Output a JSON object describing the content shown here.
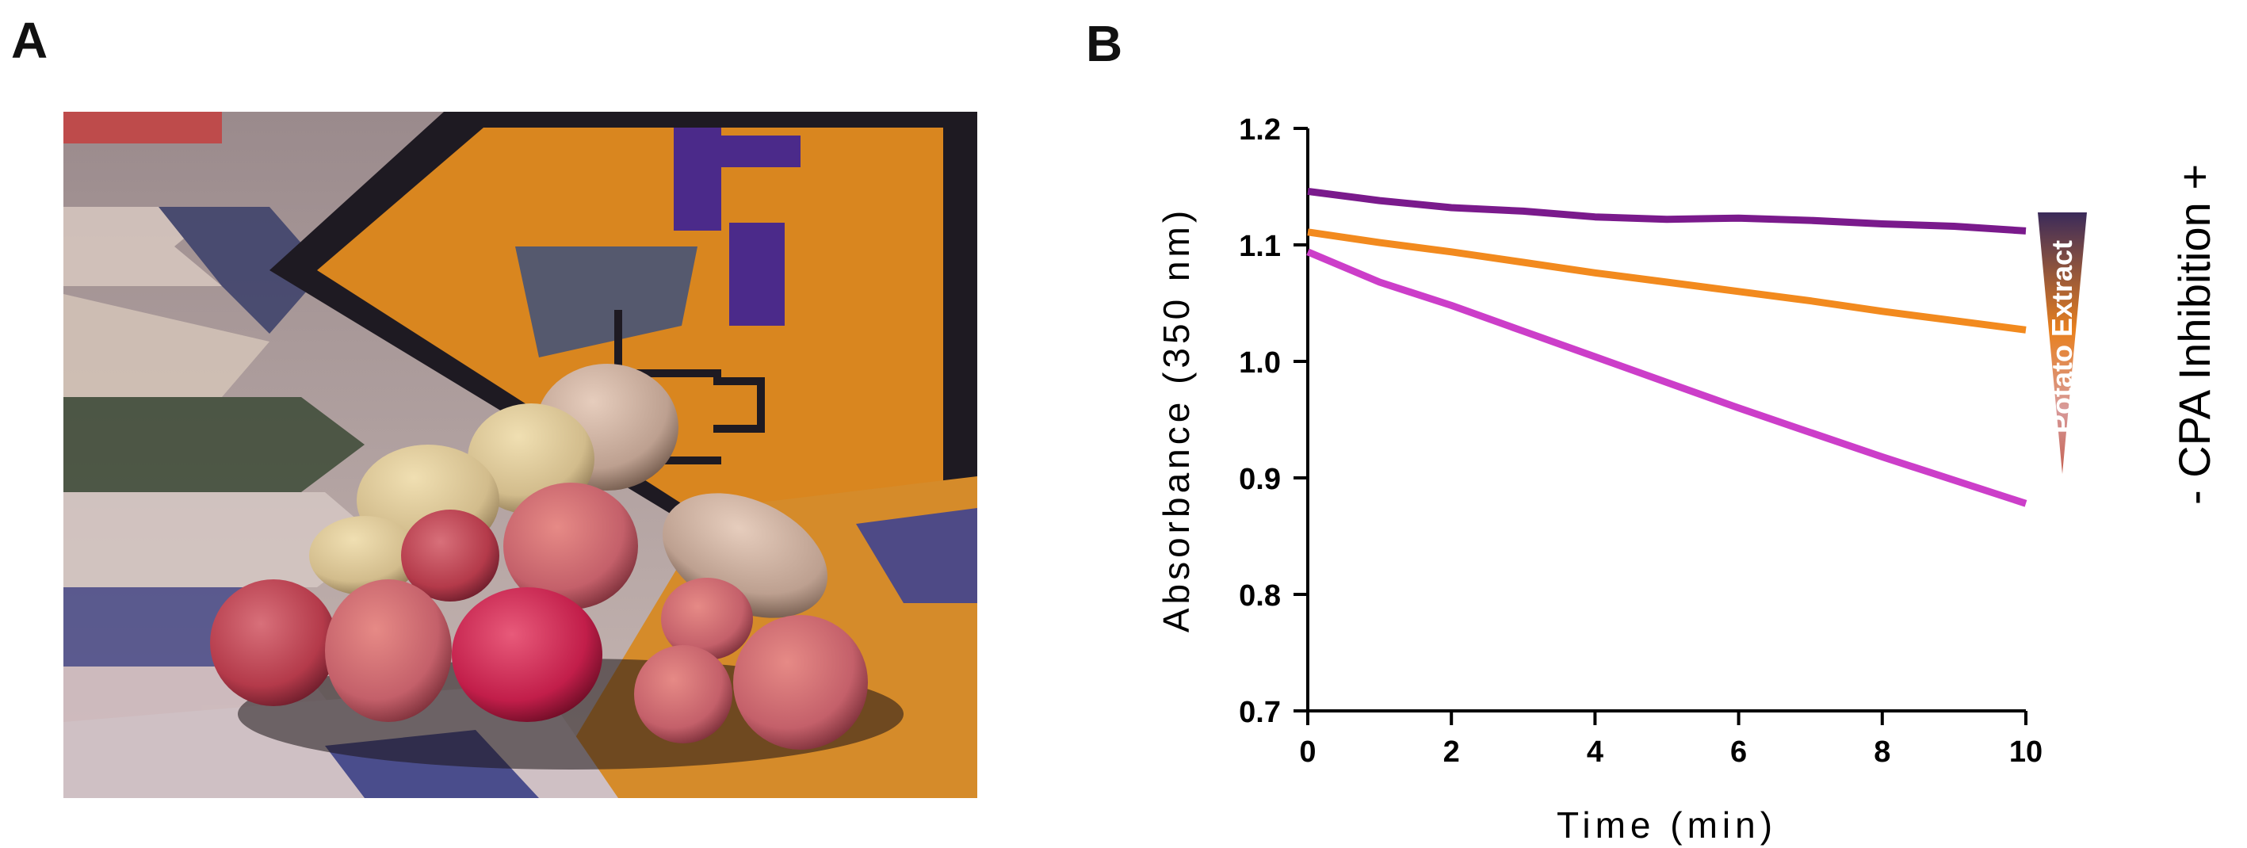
{
  "panels": {
    "a": "A",
    "b": "B"
  },
  "photo": {
    "subject": "potatoes-on-woven-textile",
    "colors": {
      "textile_orange": "#d9861f",
      "textile_dark": "#2a1d2e",
      "bird_purple": "#4b2a8a",
      "potato_red": "#b8394a",
      "potato_cream": "#d8c49a"
    }
  },
  "chart_data": {
    "type": "line",
    "xlabel": "Time (min)",
    "ylabel": "Absorbance (350 nm)",
    "xlim": [
      0,
      10
    ],
    "ylim": [
      0.7,
      1.2
    ],
    "xticks": [
      0,
      2,
      4,
      6,
      8,
      10
    ],
    "yticks": [
      0.7,
      0.8,
      0.9,
      1.0,
      1.1,
      1.2
    ],
    "xtick_labels": [
      "0",
      "2",
      "4",
      "6",
      "8",
      "10"
    ],
    "ytick_labels": [
      "0.7",
      "0.8",
      "0.9",
      "1.0",
      "1.1",
      "1.2"
    ],
    "grid": false,
    "series": [
      {
        "color": "#7a1a8c",
        "x": [
          0,
          1,
          2,
          3,
          4,
          5,
          6,
          7,
          8,
          9,
          10
        ],
        "values": [
          1.146,
          1.138,
          1.132,
          1.129,
          1.124,
          1.122,
          1.123,
          1.121,
          1.118,
          1.116,
          1.112
        ]
      },
      {
        "color": "#f28a1e",
        "x": [
          0,
          1,
          2,
          3,
          4,
          5,
          6,
          7,
          8,
          9,
          10
        ],
        "values": [
          1.111,
          1.102,
          1.094,
          1.085,
          1.076,
          1.068,
          1.06,
          1.052,
          1.043,
          1.035,
          1.027
        ]
      },
      {
        "color": "#cc3ec9",
        "x": [
          0,
          1,
          2,
          3,
          4,
          5,
          6,
          7,
          8,
          9,
          10
        ],
        "values": [
          1.094,
          1.068,
          1.048,
          1.026,
          1.004,
          0.982,
          0.96,
          0.939,
          0.918,
          0.898,
          0.878
        ]
      }
    ],
    "gradient_label": "Potato Extract",
    "gradient_colors": [
      "#3a2a5a",
      "#e8801e",
      "#d89a9a",
      "#c46050"
    ],
    "side_label": "-  CPA Inhibition +"
  }
}
